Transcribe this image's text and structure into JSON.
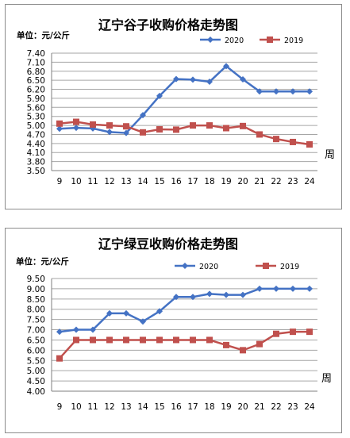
{
  "colors": {
    "series_2020": "#4472c4",
    "series_2019": "#c0504d",
    "grid": "#a6a6a6",
    "axis": "#7f7f7f"
  },
  "chart_data": [
    {
      "type": "line",
      "title": "辽宁谷子收购价格走势图",
      "unit_label": "单位：元/公斤",
      "xlabel": "周",
      "ylabel": "",
      "legend_position": "top-right",
      "grid": true,
      "x": [
        "9",
        "10",
        "11",
        "12",
        "13",
        "14",
        "15",
        "16",
        "17",
        "18",
        "19",
        "20",
        "21",
        "22",
        "23",
        "24"
      ],
      "ylim": [
        3.5,
        7.4
      ],
      "y_step": 0.3,
      "y_ticks": [
        "7.40",
        "7.10",
        "6.80",
        "6.50",
        "6.20",
        "5.90",
        "5.60",
        "5.30",
        "5.00",
        "4.70",
        "4.40",
        "4.10",
        "3.80",
        "3.50"
      ],
      "series": [
        {
          "name": "2020",
          "marker": "diamond",
          "values": [
            4.89,
            4.92,
            4.9,
            4.78,
            4.75,
            5.34,
            5.98,
            6.54,
            6.52,
            6.45,
            6.97,
            6.53,
            6.13,
            6.13,
            6.13,
            6.13
          ]
        },
        {
          "name": "2019",
          "marker": "square",
          "values": [
            5.06,
            5.12,
            5.03,
            5.0,
            4.97,
            4.77,
            4.87,
            4.86,
            5.0,
            5.0,
            4.91,
            4.98,
            4.7,
            4.55,
            4.45,
            4.37
          ]
        }
      ]
    },
    {
      "type": "line",
      "title": "辽宁绿豆收购价格走势图",
      "unit_label": "单位：元/公斤",
      "xlabel": "周",
      "ylabel": "",
      "legend_position": "top-right",
      "grid": true,
      "x": [
        "9",
        "10",
        "11",
        "12",
        "13",
        "14",
        "15",
        "16",
        "17",
        "18",
        "19",
        "20",
        "21",
        "22",
        "23",
        "24"
      ],
      "ylim": [
        4.0,
        9.5
      ],
      "y_step": 0.5,
      "y_ticks": [
        "9.50",
        "9.00",
        "8.50",
        "8.00",
        "7.50",
        "7.00",
        "6.50",
        "6.00",
        "5.50",
        "5.00",
        "4.50",
        "4.00"
      ],
      "series": [
        {
          "name": "2020",
          "marker": "diamond",
          "values": [
            6.9,
            7.0,
            7.0,
            7.8,
            7.8,
            7.4,
            7.9,
            8.6,
            8.6,
            8.75,
            8.7,
            8.7,
            9.0,
            9.0,
            9.0,
            9.0
          ]
        },
        {
          "name": "2019",
          "marker": "square",
          "values": [
            5.6,
            6.5,
            6.5,
            6.5,
            6.5,
            6.5,
            6.5,
            6.5,
            6.5,
            6.5,
            6.25,
            6.0,
            6.3,
            6.8,
            6.9,
            6.9
          ]
        }
      ]
    }
  ]
}
